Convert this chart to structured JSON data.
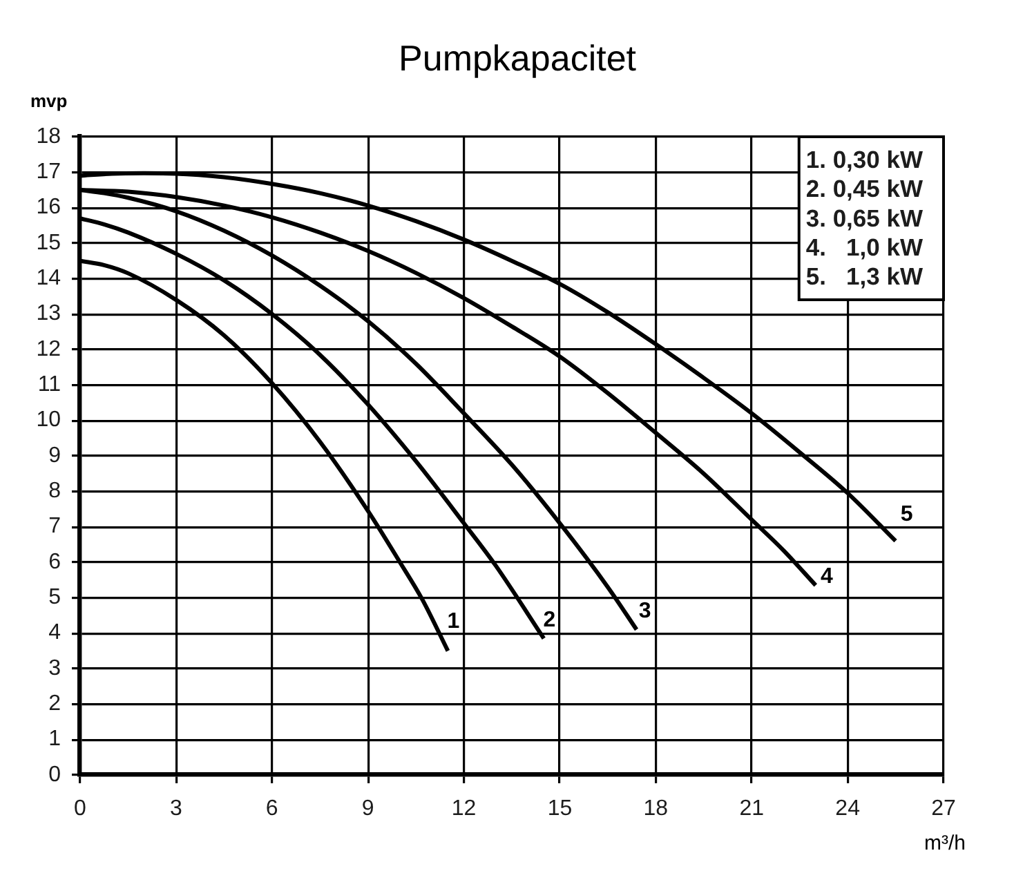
{
  "chart_data": {
    "type": "line",
    "title": "Pumpkapacitet",
    "xlabel": "m³/h",
    "ylabel": "mvp",
    "annotations": [
      "1. 0,30 kW",
      "2. 0,45 kW",
      "3. 0,65 kW",
      "4.   1,0 kW",
      "5.   1,3 kW"
    ],
    "series": [
      {
        "name": "1",
        "color": "#000000",
        "x": [
          0,
          0.75,
          1.5,
          3,
          4.5,
          6,
          7.5,
          9,
          10,
          10.7,
          11.5
        ],
        "values": [
          14.5,
          14.38,
          14.15,
          13.4,
          12.4,
          11.05,
          9.4,
          7.45,
          6.0,
          4.95,
          3.5
        ]
      },
      {
        "name": "2",
        "color": "#000000",
        "x": [
          0,
          0.75,
          1.5,
          3,
          4.5,
          6,
          7.5,
          9,
          10.5,
          12,
          13,
          14.5
        ],
        "values": [
          15.7,
          15.53,
          15.3,
          14.7,
          13.95,
          13.0,
          11.85,
          10.45,
          8.85,
          7.1,
          5.9,
          3.85
        ]
      },
      {
        "name": "3",
        "color": "#000000",
        "x": [
          0,
          0.75,
          1.5,
          3,
          4.5,
          6,
          7.5,
          9,
          10.5,
          12,
          13.5,
          15,
          16.5,
          17.4
        ],
        "values": [
          16.5,
          16.41,
          16.28,
          15.9,
          15.35,
          14.65,
          13.8,
          12.8,
          11.6,
          10.2,
          8.75,
          7.1,
          5.3,
          4.1
        ]
      },
      {
        "name": "4",
        "color": "#000000",
        "x": [
          0,
          1.5,
          3,
          4.5,
          6,
          7.5,
          9,
          10.5,
          12,
          13.5,
          15,
          16.5,
          18,
          19.5,
          21,
          22,
          23
        ],
        "values": [
          16.5,
          16.45,
          16.3,
          16.06,
          15.73,
          15.3,
          14.78,
          14.16,
          13.45,
          12.65,
          11.8,
          10.77,
          9.65,
          8.5,
          7.2,
          6.33,
          5.35
        ]
      },
      {
        "name": "5",
        "color": "#000000",
        "x": [
          0,
          1,
          2,
          3,
          4.5,
          6,
          7.5,
          9,
          10.5,
          12,
          13.5,
          15,
          16.5,
          18,
          19.5,
          21,
          22.5,
          24,
          25.5
        ],
        "values": [
          16.9,
          16.96,
          16.97,
          16.96,
          16.86,
          16.67,
          16.41,
          16.06,
          15.62,
          15.1,
          14.5,
          13.85,
          13.05,
          12.15,
          11.2,
          10.2,
          9.1,
          7.95,
          6.6
        ]
      }
    ],
    "xlim": [
      0,
      27
    ],
    "xticks": [
      0,
      3,
      6,
      9,
      12,
      15,
      18,
      21,
      24,
      27
    ],
    "ylim": [
      0,
      18
    ],
    "yticks": [
      0,
      1,
      2,
      3,
      4,
      5,
      6,
      7,
      8,
      9,
      10,
      11,
      12,
      13,
      14,
      15,
      16,
      17,
      18
    ],
    "grid": true,
    "marker": "none",
    "line_style": "solid"
  }
}
